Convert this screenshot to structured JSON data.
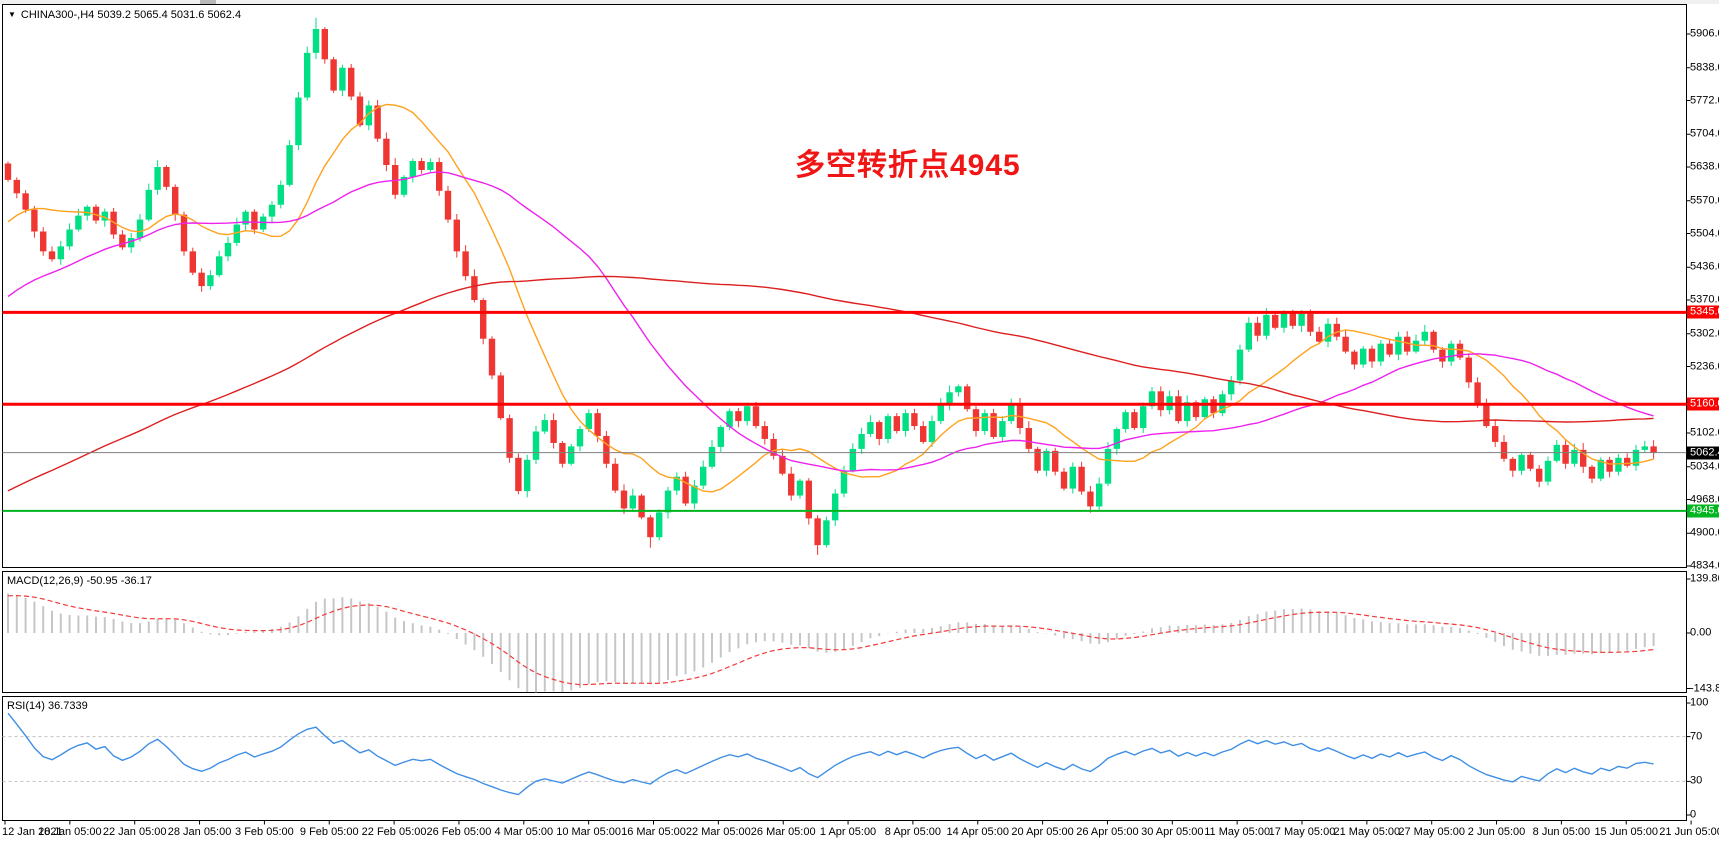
{
  "header": {
    "symbol_line": "CHINA300-,H4  5039.2 5065.4 5031.6 5062.4",
    "dropdown_arrow": "▼"
  },
  "annotation": {
    "text": "多空转折点4945",
    "color": "#f01616"
  },
  "colors": {
    "bull": "#00df84",
    "bear": "#ee3733",
    "ma_fast": "#ffa21f",
    "ma_mid": "#ee22ee",
    "ma_slow": "#dd1f1f",
    "hline_red": "#ff0000",
    "hline_green": "#00b51e",
    "price_line": "#808080",
    "price_badge_bg": "#000000",
    "macd_hist": "#c6c6c6",
    "macd_signal": "#f23b3b",
    "rsi_line": "#3f8fe5",
    "rsi_level_dash": "#c0c0c0",
    "panel_border": "#000000",
    "background": "#ffffff"
  },
  "chart_data": {
    "type": "candlestick",
    "symbol": "CHINA300-",
    "timeframe": "H4",
    "ohlc_header": {
      "open": 5039.2,
      "high": 5065.4,
      "low": 5031.6,
      "close": 5062.4
    },
    "y_axis": {
      "ticks": [
        "5906.0",
        "5838.0",
        "5772.0",
        "5704.0",
        "5638.0",
        "5570.0",
        "5504.0",
        "5436.0",
        "5370.0",
        "5302.0",
        "5236.0",
        "5102.0",
        "5034.0",
        "4968.0",
        "4900.0",
        "4834.0"
      ],
      "tick_values": [
        5906,
        5838,
        5772,
        5704,
        5638,
        5570,
        5504,
        5436,
        5370,
        5302,
        5236,
        5102,
        5034,
        4968,
        4900,
        4834
      ],
      "range": [
        4834,
        5906
      ]
    },
    "x_labels": [
      "12 Jan 2021",
      "18 Jan 05:00",
      "22 Jan 05:00",
      "28 Jan 05:00",
      "3 Feb 05:00",
      "9 Feb 05:00",
      "22 Feb 05:00",
      "26 Feb 05:00",
      "4 Mar 05:00",
      "10 Mar 05:00",
      "16 Mar 05:00",
      "22 Mar 05:00",
      "26 Mar 05:00",
      "1 Apr 05:00",
      "8 Apr 05:00",
      "14 Apr 05:00",
      "20 Apr 05:00",
      "26 Apr 05:00",
      "30 Apr 05:00",
      "11 May 05:00",
      "17 May 05:00",
      "21 May 05:00",
      "27 May 05:00",
      "2 Jun 05:00",
      "8 Jun 05:00",
      "15 Jun 05:00",
      "21 Jun 05:00"
    ],
    "closes": [
      5612,
      5585,
      5552,
      5508,
      5468,
      5452,
      5478,
      5512,
      5540,
      5558,
      5530,
      5548,
      5502,
      5476,
      5495,
      5532,
      5592,
      5638,
      5598,
      5542,
      5468,
      5425,
      5398,
      5420,
      5458,
      5485,
      5522,
      5548,
      5512,
      5538,
      5562,
      5602,
      5682,
      5778,
      5868,
      5916,
      5855,
      5792,
      5838,
      5780,
      5722,
      5762,
      5695,
      5642,
      5582,
      5618,
      5650,
      5632,
      5648,
      5590,
      5532,
      5468,
      5418,
      5370,
      5292,
      5218,
      5132,
      5052,
      4985,
      5048,
      5105,
      5128,
      5082,
      5040,
      5075,
      5110,
      5142,
      5096,
      5040,
      4986,
      4950,
      4976,
      4932,
      4892,
      4942,
      4986,
      5014,
      4960,
      4996,
      5034,
      5074,
      5114,
      5146,
      5126,
      5156,
      5116,
      5090,
      5056,
      5020,
      4976,
      5006,
      4930,
      4876,
      4926,
      4980,
      5026,
      5070,
      5100,
      5124,
      5090,
      5136,
      5106,
      5142,
      5116,
      5084,
      5126,
      5160,
      5184,
      5196,
      5150,
      5106,
      5142,
      5094,
      5126,
      5160,
      5112,
      5070,
      5026,
      5066,
      5024,
      4990,
      5034,
      4984,
      4954,
      5000,
      5070,
      5110,
      5144,
      5112,
      5156,
      5186,
      5148,
      5176,
      5126,
      5164,
      5134,
      5170,
      5142,
      5180,
      5208,
      5270,
      5324,
      5298,
      5340,
      5314,
      5344,
      5318,
      5342,
      5306,
      5286,
      5322,
      5296,
      5266,
      5240,
      5272,
      5246,
      5282,
      5260,
      5296,
      5266,
      5288,
      5306,
      5270,
      5246,
      5282,
      5254,
      5204,
      5160,
      5116,
      5084,
      5050,
      5026,
      5058,
      5030,
      5004,
      5046,
      5078,
      5040,
      5068,
      5034,
      5010,
      5048,
      5024,
      5052,
      5036,
      5068,
      5075,
      5062.4
    ],
    "first_open": 5645,
    "hlines": [
      {
        "label": "5345.0",
        "price": 5345.0,
        "color": "#ff0000",
        "width": 3
      },
      {
        "label": "5160.0",
        "price": 5160.0,
        "color": "#ff0000",
        "width": 3
      },
      {
        "label": "4945.0",
        "price": 4945.0,
        "color": "#00b51e",
        "width": 2
      }
    ],
    "current_price": {
      "label": "5062.4",
      "price": 5062.4
    },
    "moving_averages": [
      {
        "name": "ma-fast",
        "period": 13,
        "color": "#ffa21f"
      },
      {
        "name": "ma-mid",
        "period": 34,
        "color": "#ee22ee"
      },
      {
        "name": "ma-slow",
        "period": 110,
        "color": "#dd1f1f"
      }
    ],
    "indicators": {
      "macd": {
        "display": "MACD(12,26,9) -50.95 -36.17",
        "params": [
          12,
          26,
          9
        ],
        "value_macd": -50.95,
        "value_signal": -36.17,
        "axis_ticks": [
          {
            "label": "139.86",
            "value": 139.86
          },
          {
            "label": "0.00",
            "value": 0
          },
          {
            "label": "-143.82",
            "value": -143.82
          }
        ]
      },
      "rsi": {
        "display": "RSI(14) 36.7339",
        "period": 14,
        "value": 36.7339,
        "axis_ticks": [
          {
            "label": "100",
            "value": 100
          },
          {
            "label": "70",
            "value": 70
          },
          {
            "label": "30",
            "value": 30
          },
          {
            "label": "0",
            "value": 0
          }
        ],
        "levels": [
          70,
          30
        ]
      }
    }
  }
}
